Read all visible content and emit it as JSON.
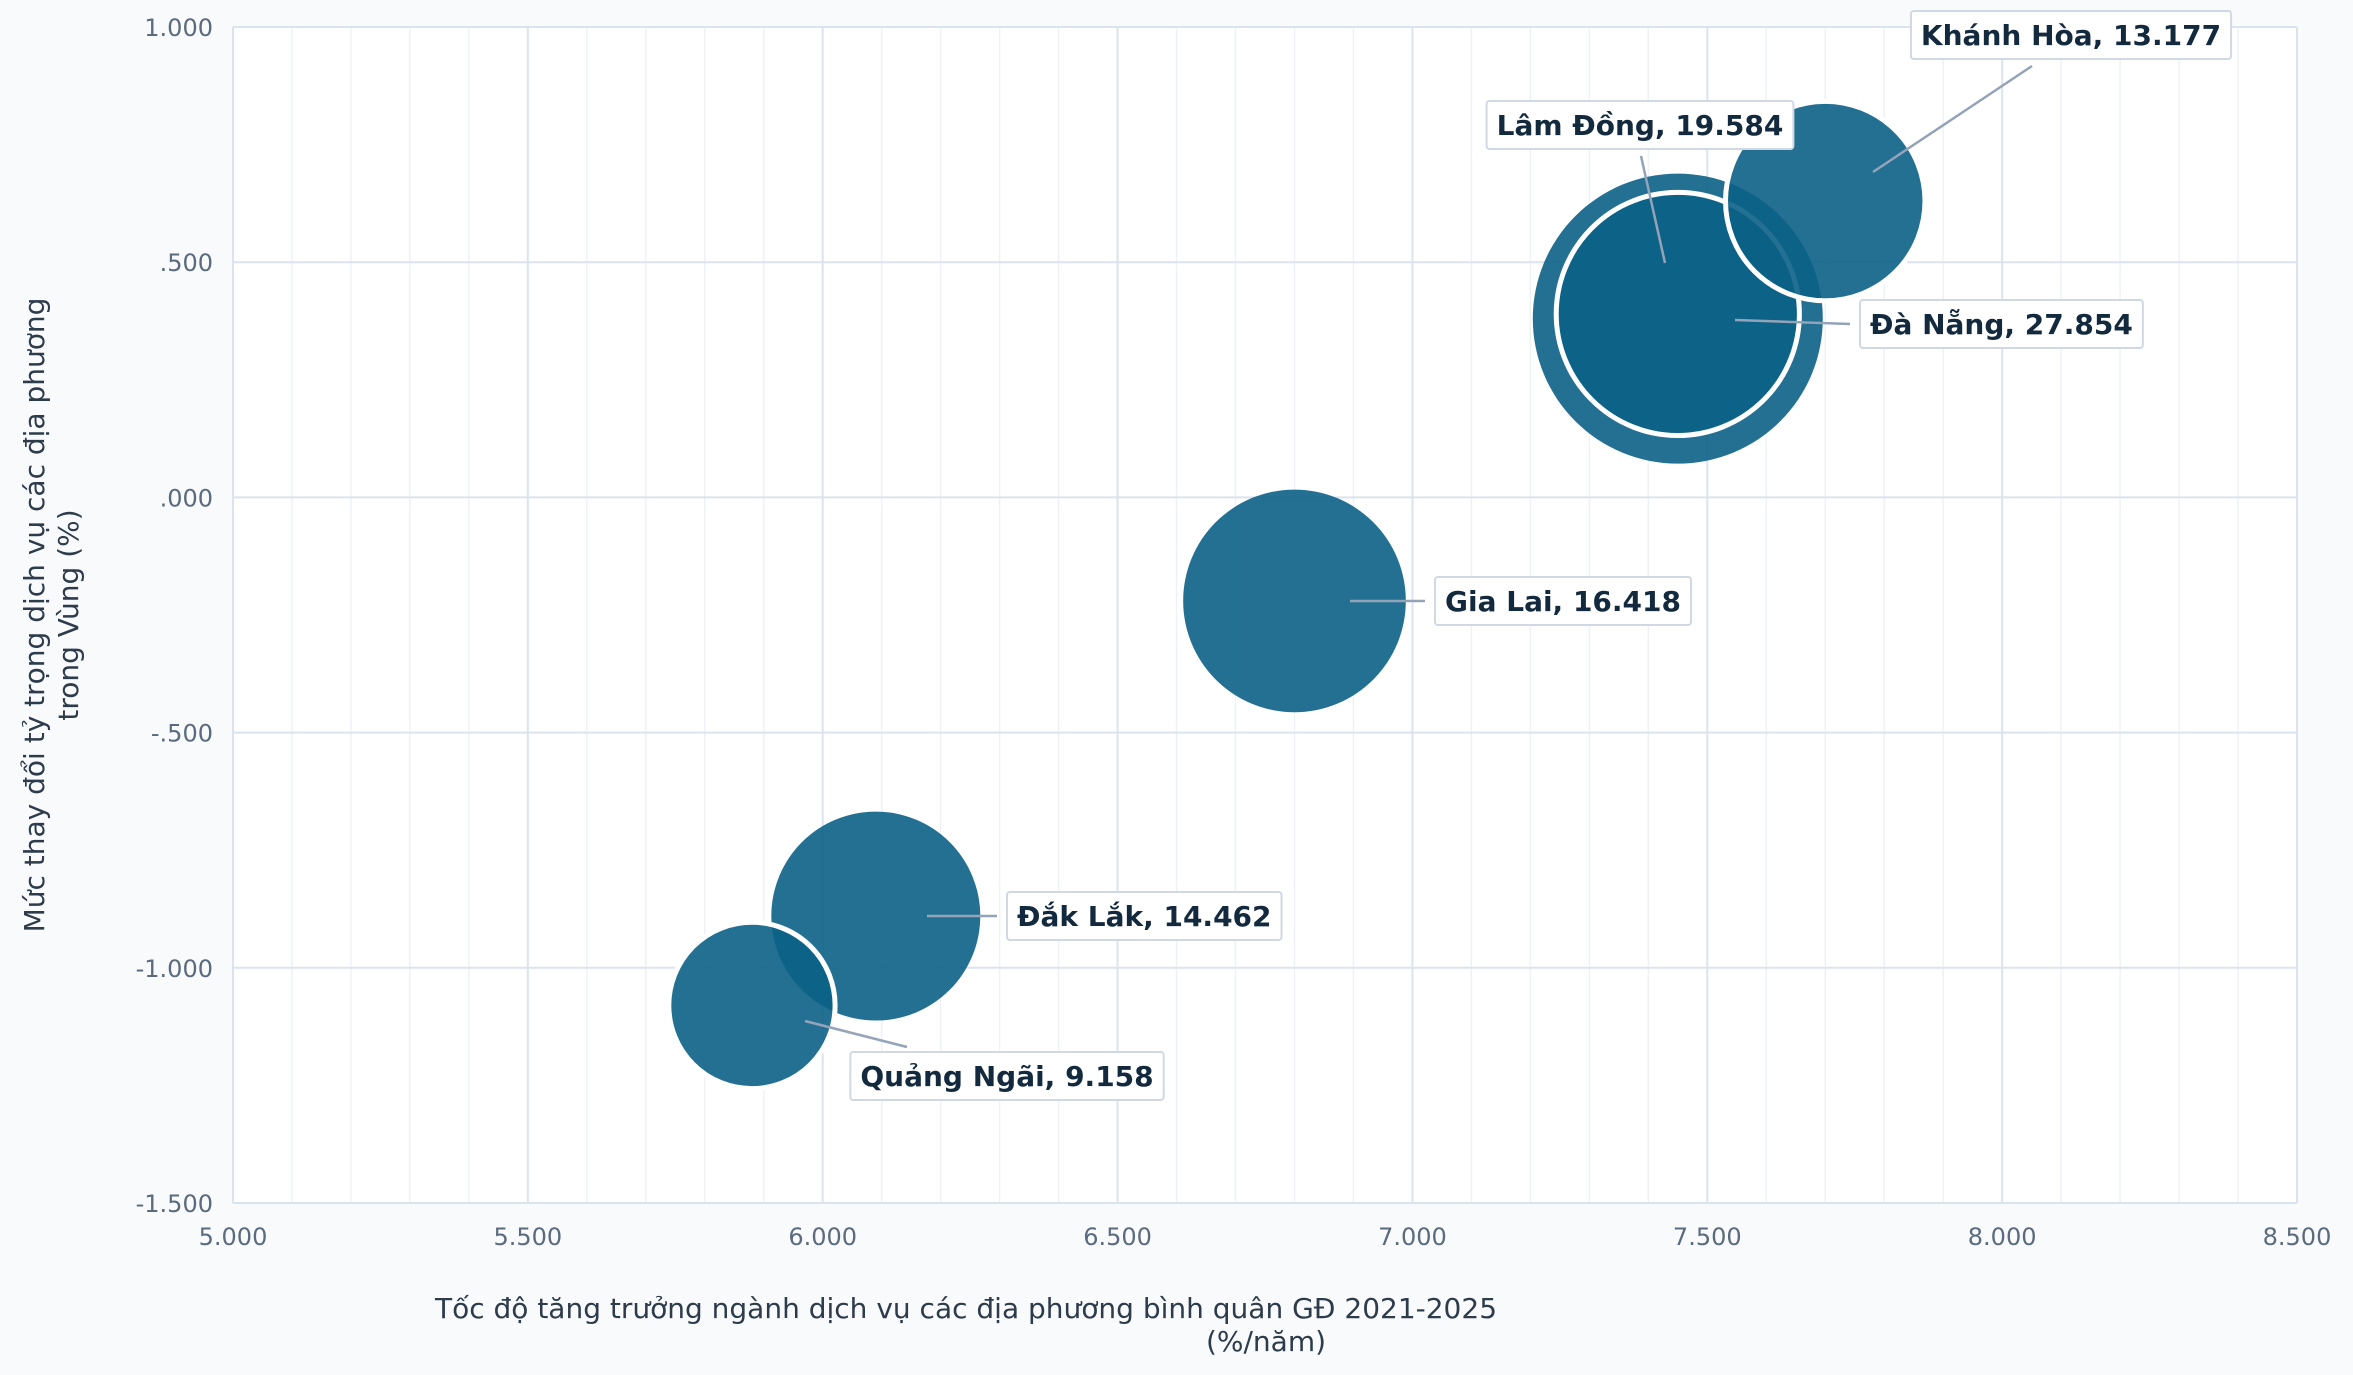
{
  "chart_data": {
    "type": "scatter",
    "title": "",
    "xlabel": "Tốc độ tăng trưởng ngành dịch vụ các địa phương bình quân GĐ 2021-2025",
    "xlabel_line2": "(%/năm)",
    "ylabel": "Mức thay đổi tỷ trọng dịch vụ các địa phương",
    "ylabel_line2": "trong Vùng (%)",
    "xlim": [
      5.0,
      8.5
    ],
    "ylim": [
      -1.5,
      1.0
    ],
    "x_ticks": [
      5.0,
      5.5,
      6.0,
      6.5,
      7.0,
      7.5,
      8.0,
      8.5
    ],
    "x_tick_labels": [
      "5.000",
      "5.500",
      "6.000",
      "6.500",
      "7.000",
      "7.500",
      "8.000",
      "8.500"
    ],
    "y_ticks": [
      1.0,
      0.5,
      0.0,
      -0.5,
      -1.0,
      -1.5
    ],
    "y_tick_labels": [
      "1.000",
      ".500",
      ".000",
      "-.500",
      "-1.000",
      "-1.500"
    ],
    "grid": true,
    "bubble_color": "#0b6186",
    "points": [
      {
        "label": "Đà Nẵng, 27.854",
        "x": 7.45,
        "y": 0.38,
        "size": 27.854,
        "outline": false
      },
      {
        "label": "Lâm Đồng, 19.584",
        "x": 7.45,
        "y": 0.39,
        "size": 19.584,
        "outline": true
      },
      {
        "label": "Gia Lai, 16.418",
        "x": 6.8,
        "y": -0.22,
        "size": 16.418,
        "outline": false
      },
      {
        "label": "Đắk Lắk, 14.462",
        "x": 6.09,
        "y": -0.89,
        "size": 14.462,
        "outline": false
      },
      {
        "label": "Khánh Hòa, 13.177",
        "x": 7.7,
        "y": 0.63,
        "size": 13.177,
        "outline": true
      },
      {
        "label": "Quảng Ngãi, 9.158",
        "x": 5.88,
        "y": -1.08,
        "size": 9.158,
        "outline": true
      }
    ]
  }
}
